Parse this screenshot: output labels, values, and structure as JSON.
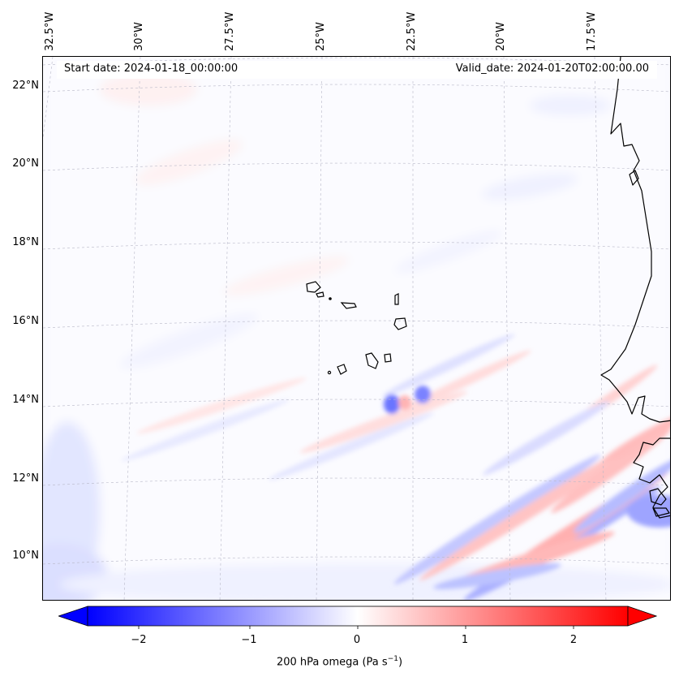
{
  "header": {
    "start_date": "Start date: 2024-01-18_00:00:00",
    "valid_date": "Valid_date: 2024-01-20T02:00:00.00"
  },
  "map": {
    "lon_ticks": [
      "32.5°W",
      "30°W",
      "27.5°W",
      "25°W",
      "22.5°W",
      "20°W",
      "17.5°W"
    ],
    "lat_ticks": [
      "22°N",
      "20°N",
      "18°N",
      "16°N",
      "14°N",
      "12°N",
      "10°N"
    ],
    "features": [
      "coastline-africa",
      "cape-verde-islands"
    ]
  },
  "colorbar": {
    "variable": "200 hPa omega",
    "units_base": "Pa s",
    "units_exp": "−1",
    "ticks": [
      "−2",
      "−1",
      "0",
      "1",
      "2"
    ],
    "colors": {
      "negative": "#0000ff",
      "positive": "#ff0000",
      "neutral": "#ffffff"
    }
  },
  "chart_data": {
    "type": "heatmap",
    "title": "200 hPa omega (Pa s⁻¹)",
    "colormap": "bwr",
    "vmin": -2.5,
    "vmax": 2.5,
    "extend": "both",
    "colorbar_ticks": [
      -2,
      -1,
      0,
      1,
      2
    ],
    "lon_range_deg": [
      -33,
      -15.5
    ],
    "lat_range_deg": [
      9,
      22.8
    ],
    "lon_ticks_deg": [
      -32.5,
      -30,
      -27.5,
      -25,
      -22.5,
      -20,
      -17.5
    ],
    "lat_ticks_deg": [
      22,
      20,
      18,
      16,
      14,
      12,
      10
    ]
  }
}
